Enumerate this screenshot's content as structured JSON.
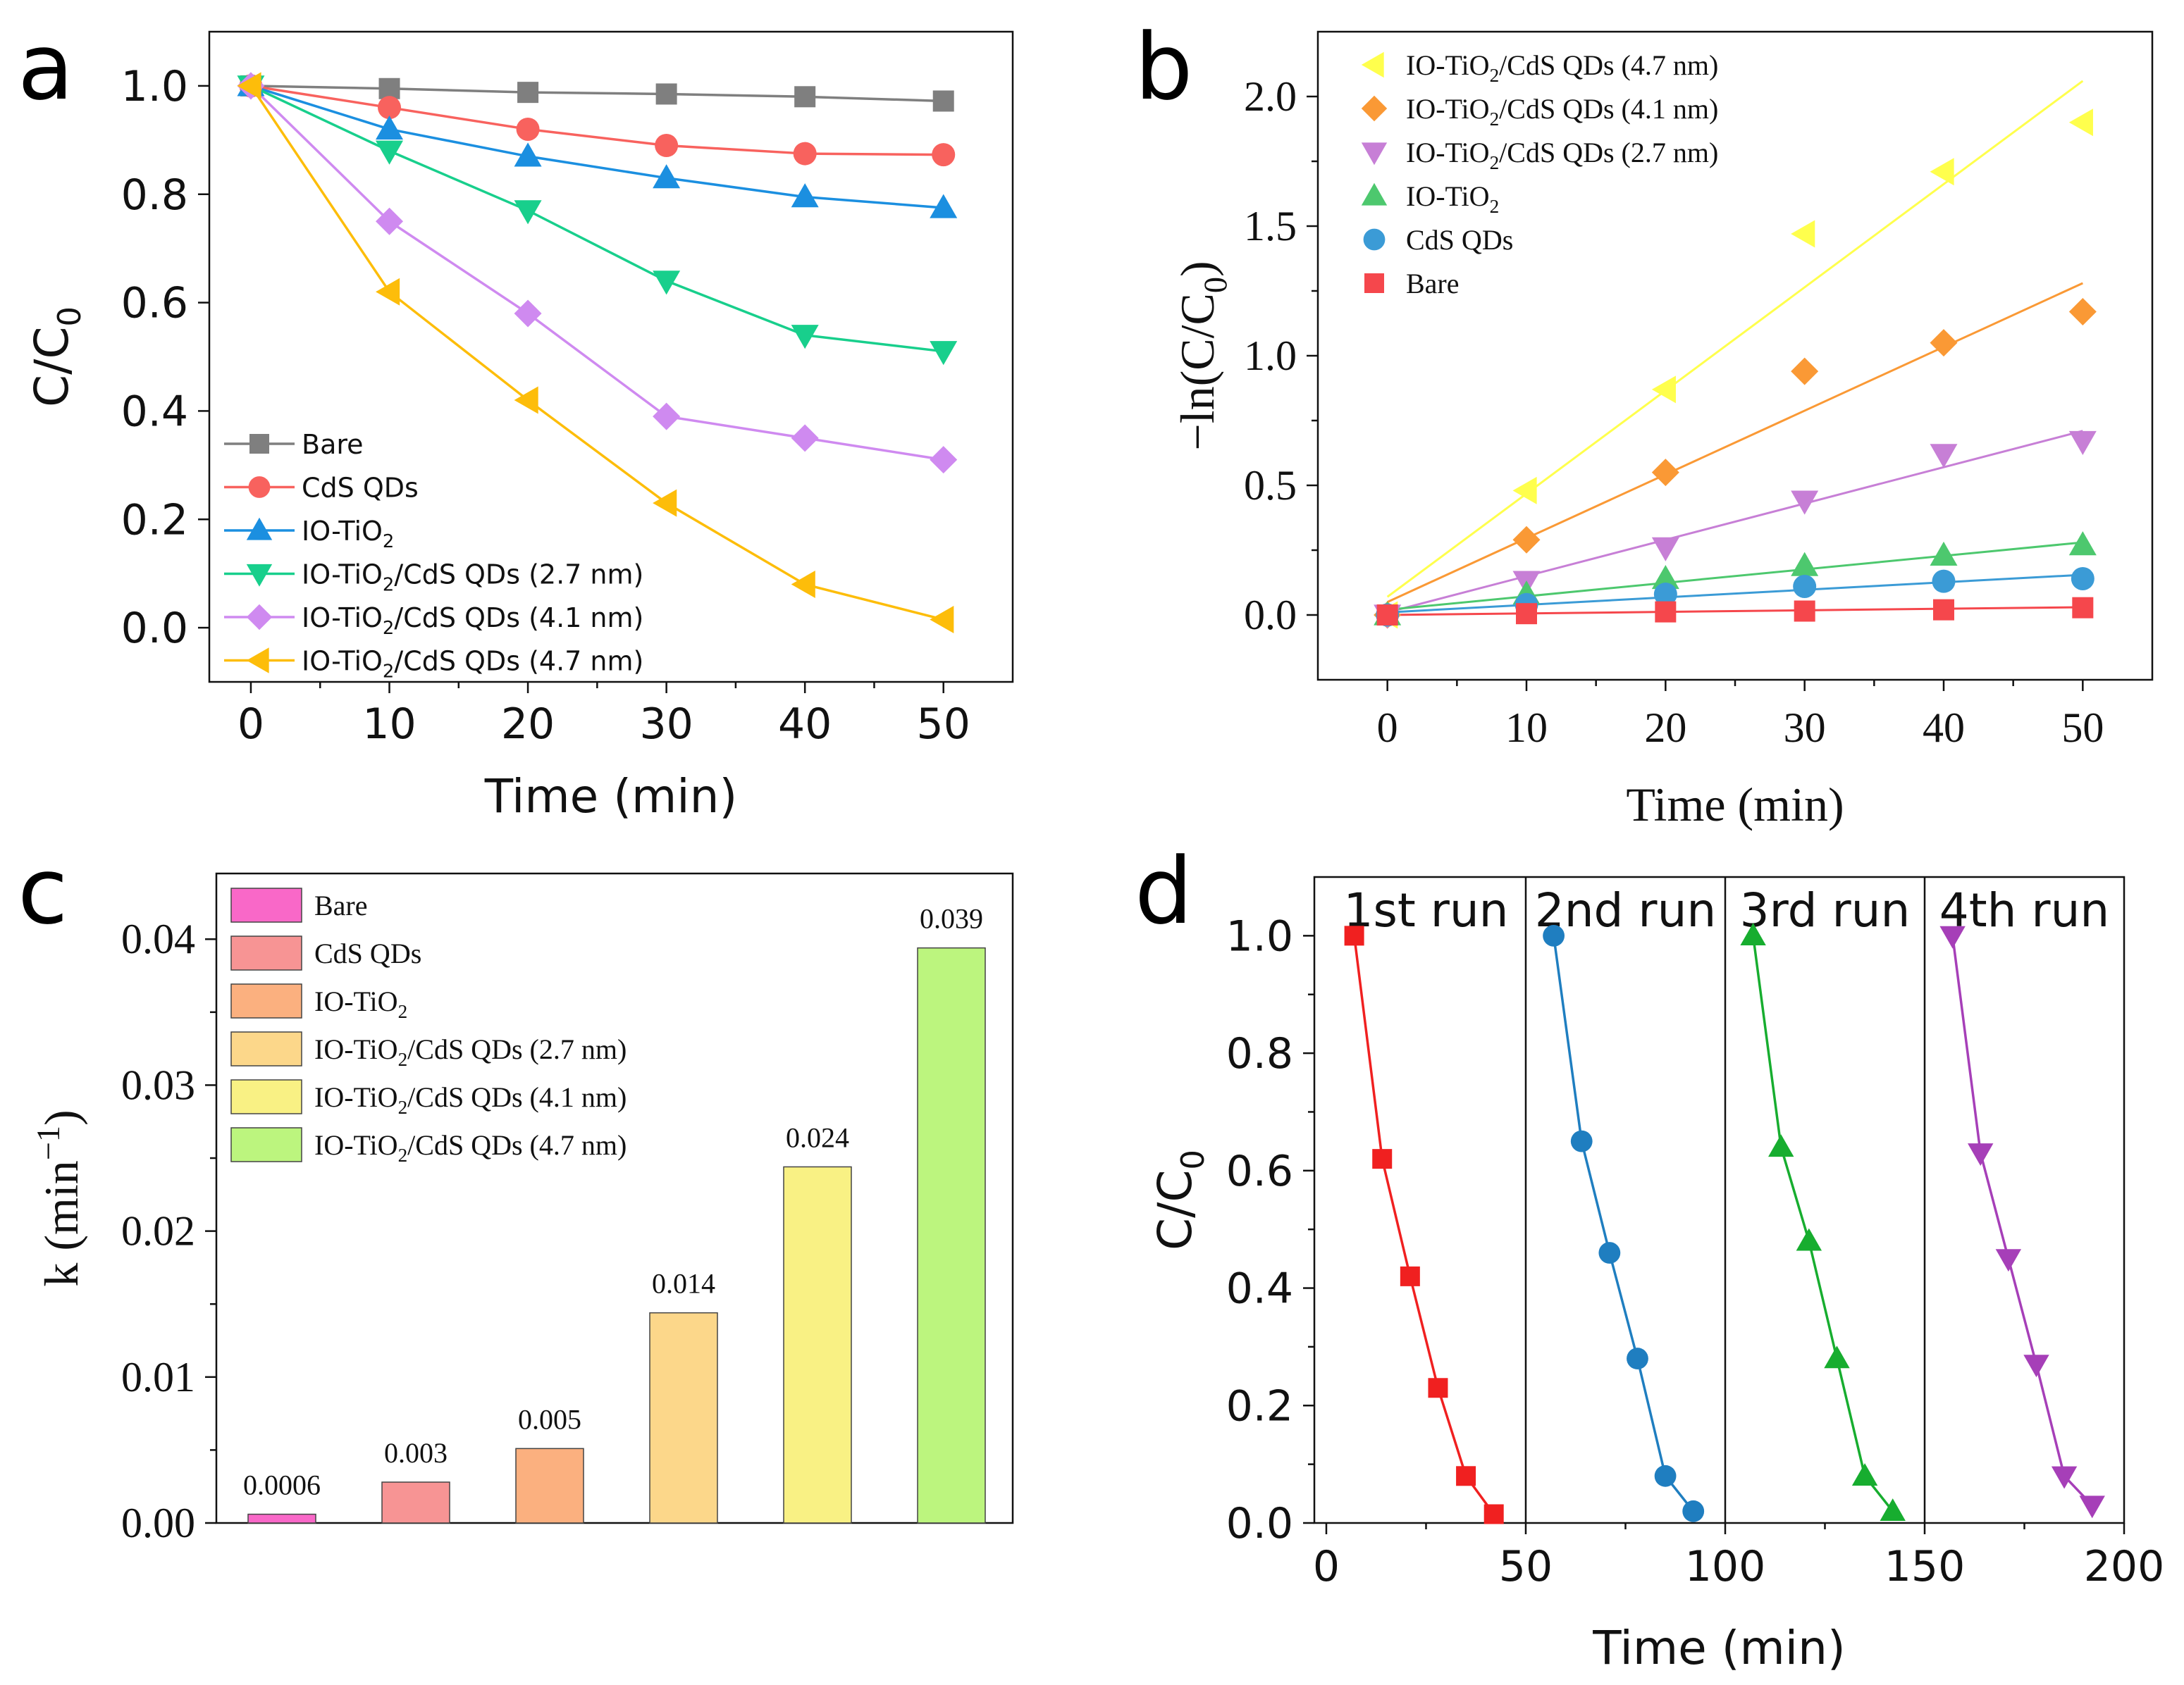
{
  "panels": {
    "a": "a",
    "b": "b",
    "c": "c",
    "d": "d"
  },
  "chart_data": [
    {
      "panel": "a",
      "type": "line",
      "xlabel": "Time (min)",
      "ylabel": "C/C",
      "ylabel_sub": "0",
      "xlim": [
        -3,
        55
      ],
      "ylim": [
        -0.1,
        1.1
      ],
      "xticks": [
        0,
        10,
        20,
        30,
        40,
        50
      ],
      "yticks": [
        0.0,
        0.2,
        0.4,
        0.6,
        0.8,
        1.0
      ],
      "ytick_labels": [
        "0.0",
        "0.2",
        "0.4",
        "0.6",
        "0.8",
        "1.0"
      ],
      "legend_position": "lower-left",
      "x": [
        0,
        10,
        20,
        30,
        40,
        50
      ],
      "series": [
        {
          "name": "Bare",
          "label_main": "Bare",
          "label_tail": "",
          "color": "#7f7f7f",
          "marker": "square",
          "values": [
            1.0,
            0.995,
            0.988,
            0.985,
            0.98,
            0.972
          ]
        },
        {
          "name": "CdS QDs",
          "label_main": "CdS QDs",
          "label_tail": "",
          "color": "#f8625e",
          "marker": "circle",
          "values": [
            1.0,
            0.96,
            0.92,
            0.89,
            0.875,
            0.873
          ]
        },
        {
          "name": "IO-TiO2",
          "label_main": "IO-TiO",
          "label_tail": "",
          "color": "#1b8fe0",
          "marker": "triangle-up",
          "values": [
            1.0,
            0.92,
            0.87,
            0.83,
            0.795,
            0.775
          ]
        },
        {
          "name": "IO-TiO2/CdS QDs (2.7 nm)",
          "label_main": "IO-TiO",
          "label_tail": "/CdS QDs (2.7 nm)",
          "color": "#18cf8c",
          "marker": "triangle-down",
          "values": [
            1.0,
            0.88,
            0.77,
            0.64,
            0.54,
            0.51
          ]
        },
        {
          "name": "IO-TiO2/CdS QDs (4.1 nm)",
          "label_main": "IO-TiO",
          "label_tail": "/CdS QDs (4.1 nm)",
          "color": "#cf8af0",
          "marker": "diamond",
          "values": [
            1.0,
            0.75,
            0.58,
            0.39,
            0.35,
            0.31
          ]
        },
        {
          "name": "IO-TiO2/CdS QDs (4.7 nm)",
          "label_main": "IO-TiO",
          "label_tail": "/CdS QDs (4.7 nm)",
          "color": "#fdbd0a",
          "marker": "triangle-left",
          "values": [
            1.0,
            0.62,
            0.42,
            0.23,
            0.08,
            0.015
          ]
        }
      ]
    },
    {
      "panel": "b",
      "type": "scatter",
      "xlabel": "Time (min)",
      "ylabel": "−ln(C/C",
      "ylabel_sub": "0",
      "ylabel_tail": ")",
      "xlim": [
        -5,
        55
      ],
      "ylim": [
        -0.25,
        2.25
      ],
      "xticks": [
        0,
        10,
        20,
        30,
        40,
        50
      ],
      "yticks": [
        0.0,
        0.5,
        1.0,
        1.5,
        2.0
      ],
      "ytick_labels": [
        "0.0",
        "0.5",
        "1.0",
        "1.5",
        "2.0"
      ],
      "legend_position": "top-left",
      "x": [
        0,
        10,
        20,
        30,
        40,
        50
      ],
      "series": [
        {
          "name": "IO-TiO2/CdS QDs (4.7 nm)",
          "label_main": "IO-TiO",
          "label_tail": "/CdS QDs (4.7 nm)",
          "color": "#ffff4d",
          "marker": "triangle-left",
          "values": [
            0.0,
            0.48,
            0.87,
            1.47,
            1.71,
            1.9
          ],
          "fit": [
            0.07,
            2.06
          ]
        },
        {
          "name": "IO-TiO2/CdS QDs (4.1 nm)",
          "label_main": "IO-TiO",
          "label_tail": "/CdS QDs (4.1 nm)",
          "color": "#fa9935",
          "marker": "diamond",
          "values": [
            0.0,
            0.29,
            0.55,
            0.94,
            1.05,
            1.17
          ],
          "fit": [
            0.05,
            1.28
          ]
        },
        {
          "name": "IO-TiO2/CdS QDs (2.7 nm)",
          "label_main": "IO-TiO",
          "label_tail": "/CdS QDs (2.7 nm)",
          "color": "#c77fd6",
          "marker": "triangle-down",
          "values": [
            0.0,
            0.13,
            0.26,
            0.44,
            0.62,
            0.67
          ],
          "fit": [
            0.01,
            0.71
          ]
        },
        {
          "name": "IO-TiO2",
          "label_main": "IO-TiO",
          "label_tail": "",
          "color": "#4dc86e",
          "marker": "triangle-up",
          "values": [
            0.0,
            0.08,
            0.14,
            0.19,
            0.23,
            0.27
          ],
          "fit": [
            0.02,
            0.28
          ]
        },
        {
          "name": "CdS QDs",
          "label_main": "CdS QDs",
          "label_tail": "",
          "color": "#3b9bd6",
          "marker": "circle",
          "values": [
            0.0,
            0.04,
            0.08,
            0.11,
            0.13,
            0.14
          ],
          "fit": [
            0.01,
            0.155
          ]
        },
        {
          "name": "Bare",
          "label_main": "Bare",
          "label_tail": "",
          "color": "#f5474c",
          "marker": "square",
          "values": [
            0.0,
            0.005,
            0.012,
            0.015,
            0.02,
            0.028
          ],
          "fit": [
            0.0,
            0.03
          ]
        }
      ]
    },
    {
      "panel": "c",
      "type": "bar",
      "xlabel": "",
      "ylabel": "k (min",
      "ylabel_sup": "−1",
      "ylabel_tail": ")",
      "ylim": [
        0,
        0.0445
      ],
      "yticks": [
        0.0,
        0.01,
        0.02,
        0.03,
        0.04
      ],
      "ytick_labels": [
        "0.00",
        "0.01",
        "0.02",
        "0.03",
        "0.04"
      ],
      "legend_position": "top-left",
      "categories": [
        "Bare",
        "CdS QDs",
        "IO-TiO2",
        "IO-TiO2/CdS QDs (2.7 nm)",
        "IO-TiO2/CdS QDs (4.1 nm)",
        "IO-TiO2/CdS QDs (4.7 nm)"
      ],
      "legend_main": [
        "Bare",
        "CdS QDs",
        "IO-TiO",
        "IO-TiO",
        "IO-TiO",
        "IO-TiO"
      ],
      "legend_tail": [
        "",
        "",
        "",
        "/CdS QDs (2.7 nm)",
        "/CdS QDs (4.1 nm)",
        "/CdS QDs (4.7 nm)"
      ],
      "values": [
        0.0006,
        0.0028,
        0.0051,
        0.0144,
        0.0244,
        0.0394
      ],
      "data_labels": [
        "0.0006",
        "0.003",
        "0.005",
        "0.014",
        "0.024",
        "0.039"
      ],
      "colors": [
        "#f968c8",
        "#f79494",
        "#fbb07f",
        "#fcd78a",
        "#f9f184",
        "#bcf57e"
      ]
    },
    {
      "panel": "d",
      "type": "line",
      "xlabel": "Time (min)",
      "ylabel": "C/C",
      "ylabel_sub": "0",
      "xlim": [
        -3,
        200
      ],
      "ylim": [
        0,
        1.1
      ],
      "xticks": [
        0,
        50,
        100,
        150,
        200
      ],
      "yticks": [
        0.0,
        0.2,
        0.4,
        0.6,
        0.8,
        1.0
      ],
      "ytick_labels": [
        "0.0",
        "0.2",
        "0.4",
        "0.6",
        "0.8",
        "1.0"
      ],
      "dividers": [
        50,
        100,
        150
      ],
      "run_labels": [
        "1st run",
        "2nd run",
        "3rd run",
        "4th run"
      ],
      "series": [
        {
          "name": "1st run",
          "color": "#f02020",
          "marker": "square",
          "x": [
            7,
            14,
            21,
            28,
            35,
            42
          ],
          "values": [
            1.0,
            0.62,
            0.42,
            0.23,
            0.08,
            0.015
          ]
        },
        {
          "name": "2nd run",
          "color": "#1f7ec0",
          "marker": "circle",
          "x": [
            57,
            64,
            71,
            78,
            85,
            92
          ],
          "values": [
            1.0,
            0.65,
            0.46,
            0.28,
            0.08,
            0.02
          ]
        },
        {
          "name": "3rd run",
          "color": "#17ad2f",
          "marker": "triangle-up",
          "x": [
            107,
            114,
            121,
            128,
            135,
            142
          ],
          "values": [
            1.0,
            0.64,
            0.48,
            0.28,
            0.08,
            0.02
          ]
        },
        {
          "name": "4th run",
          "color": "#a63fb8",
          "marker": "triangle-down",
          "x": [
            157,
            164,
            171,
            178,
            185,
            192
          ],
          "values": [
            1.0,
            0.63,
            0.45,
            0.27,
            0.08,
            0.03
          ]
        }
      ]
    }
  ]
}
